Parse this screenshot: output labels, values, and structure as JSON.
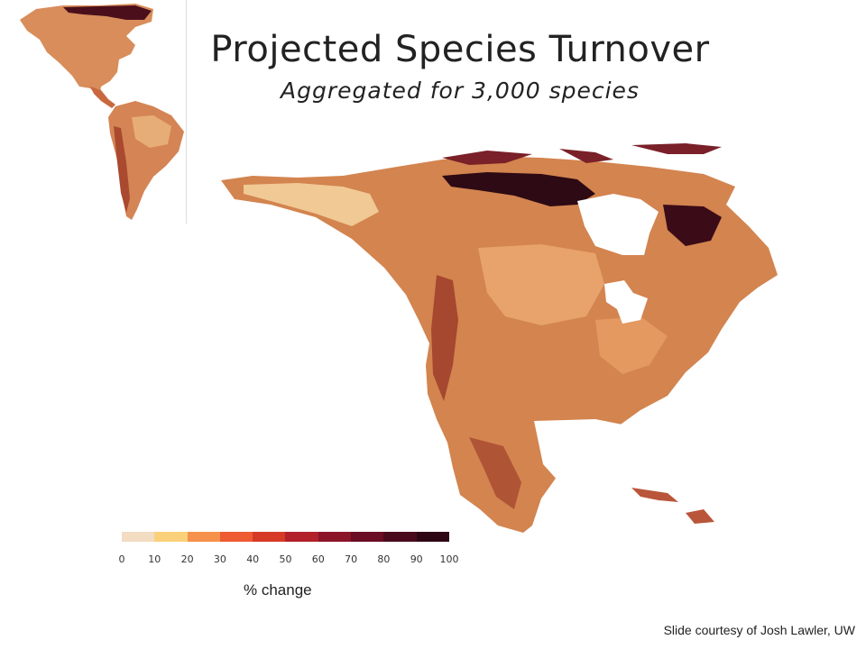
{
  "slide": {
    "title": "Projected Species Turnover",
    "subtitle": "Aggregated for 3,000 species",
    "legend_title": "% change",
    "credit": "Slide courtesy of Josh Lawler, UW"
  },
  "legend": {
    "ticks": [
      "0",
      "10",
      "20",
      "30",
      "40",
      "50",
      "60",
      "70",
      "80",
      "90",
      "100"
    ],
    "colors": [
      "#f2dcc2",
      "#fbd07a",
      "#f5914a",
      "#ee5a32",
      "#d63a26",
      "#b2202a",
      "#8c1429",
      "#6a0d25",
      "#4a0a1e",
      "#2e0714"
    ]
  },
  "map_colors": {
    "low": "#f6d39a",
    "light": "#e9a56e",
    "mid": "#d07a4c",
    "dark": "#a34832",
    "darker": "#6d1c22",
    "darkest": "#2a0a12"
  }
}
